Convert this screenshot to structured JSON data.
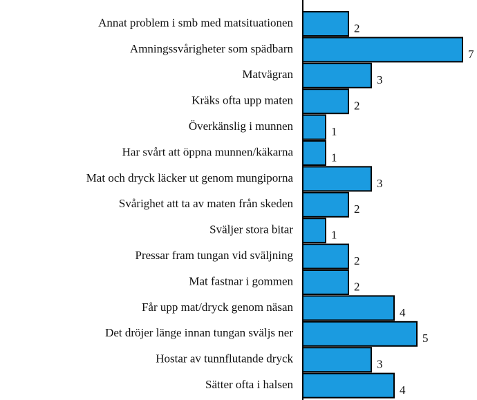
{
  "chart_data": {
    "type": "bar",
    "orientation": "horizontal",
    "color": "#1b9be0",
    "categories": [
      "Annat problem i smb med matsituationen",
      "Amningssvårigheter som spädbarn",
      "Matvägran",
      "Kräks ofta upp maten",
      "Överkänslig i munnen",
      "Har svårt att öppna munnen/käkarna",
      "Mat och dryck läcker ut genom mungiporna",
      "Svårighet att ta av maten från skeden",
      "Sväljer stora bitar",
      "Pressar fram tungan vid sväljning",
      "Mat fastnar i gommen",
      "Får upp mat/dryck genom näsan",
      "Det dröjer länge innan tungan sväljs ner",
      "Hostar av tunnflutande dryck",
      "Sätter ofta i halsen"
    ],
    "values": [
      2,
      7,
      3,
      2,
      1,
      1,
      3,
      2,
      1,
      2,
      2,
      4,
      5,
      3,
      4
    ]
  }
}
